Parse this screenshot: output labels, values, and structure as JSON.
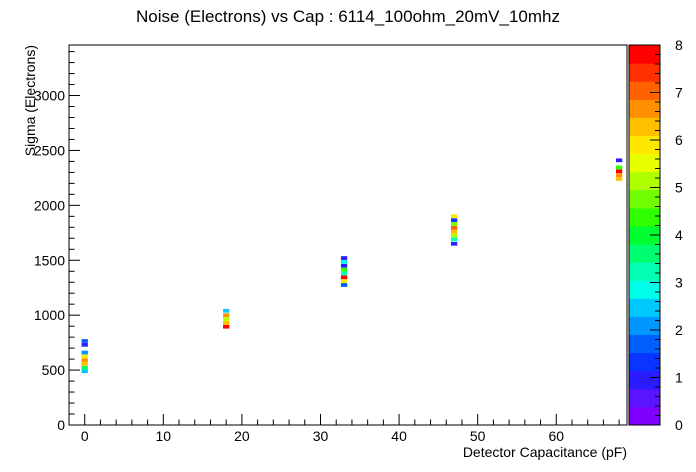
{
  "chart_data": {
    "type": "heatmap",
    "title": "Noise (Electrons) vs Cap : 6114_100ohm_20mV_10mhz",
    "xlabel": "Detector Capacitance (pF)",
    "ylabel": "Sigma (Electrons)",
    "xlim": [
      -2,
      69
    ],
    "ylim": [
      0,
      3460
    ],
    "x_ticks": [
      0,
      10,
      20,
      30,
      40,
      50,
      60
    ],
    "y_ticks": [
      0,
      500,
      1000,
      1500,
      2000,
      2500,
      3000
    ],
    "z_range": [
      0,
      8
    ],
    "z_ticks": [
      0,
      1,
      2,
      3,
      4,
      5,
      6,
      7,
      8
    ],
    "palette": [
      "#7f00ff",
      "#5a14ff",
      "#2a1cff",
      "#0a34ff",
      "#0060ff",
      "#0096ff",
      "#00c8ff",
      "#00ffe8",
      "#00ffb0",
      "#00ff70",
      "#00ff30",
      "#30ff00",
      "#70ff00",
      "#b0ff00",
      "#e8ff00",
      "#ffe800",
      "#ffc000",
      "#ff9000",
      "#ff6000",
      "#ff3000",
      "#ff0000"
    ],
    "bin_width": 0.8,
    "bin_height": 34,
    "cells": [
      {
        "x": 0,
        "y": 490,
        "z": 2.3
      },
      {
        "x": 0,
        "y": 520,
        "z": 3.8
      },
      {
        "x": 0,
        "y": 555,
        "z": 6.2
      },
      {
        "x": 0,
        "y": 590,
        "z": 6.8
      },
      {
        "x": 0,
        "y": 625,
        "z": 5.8
      },
      {
        "x": 0,
        "y": 660,
        "z": 2.2
      },
      {
        "x": 0,
        "y": 730,
        "z": 1.0
      },
      {
        "x": 0,
        "y": 765,
        "z": 1.7
      },
      {
        "x": 18,
        "y": 895,
        "z": 8.0
      },
      {
        "x": 18,
        "y": 930,
        "z": 6.2
      },
      {
        "x": 18,
        "y": 965,
        "z": 5.0
      },
      {
        "x": 18,
        "y": 1000,
        "z": 6.8
      },
      {
        "x": 18,
        "y": 1040,
        "z": 2.6
      },
      {
        "x": 33,
        "y": 1275,
        "z": 1.7
      },
      {
        "x": 33,
        "y": 1310,
        "z": 6.0
      },
      {
        "x": 33,
        "y": 1345,
        "z": 8.0
      },
      {
        "x": 33,
        "y": 1380,
        "z": 3.3
      },
      {
        "x": 33,
        "y": 1415,
        "z": 4.5
      },
      {
        "x": 33,
        "y": 1450,
        "z": 1.0
      },
      {
        "x": 33,
        "y": 1485,
        "z": 2.7
      },
      {
        "x": 33,
        "y": 1520,
        "z": 1.0
      },
      {
        "x": 47,
        "y": 1650,
        "z": 1.0
      },
      {
        "x": 47,
        "y": 1690,
        "z": 3.3
      },
      {
        "x": 47,
        "y": 1725,
        "z": 5.2
      },
      {
        "x": 47,
        "y": 1760,
        "z": 6.3
      },
      {
        "x": 47,
        "y": 1795,
        "z": 7.2
      },
      {
        "x": 47,
        "y": 1830,
        "z": 4.8
      },
      {
        "x": 47,
        "y": 1865,
        "z": 1.3
      },
      {
        "x": 47,
        "y": 1900,
        "z": 6.0
      },
      {
        "x": 68,
        "y": 2240,
        "z": 6.2
      },
      {
        "x": 68,
        "y": 2275,
        "z": 6.6
      },
      {
        "x": 68,
        "y": 2310,
        "z": 8.0
      },
      {
        "x": 68,
        "y": 2345,
        "z": 4.5
      },
      {
        "x": 68,
        "y": 2410,
        "z": 1.0
      }
    ]
  }
}
